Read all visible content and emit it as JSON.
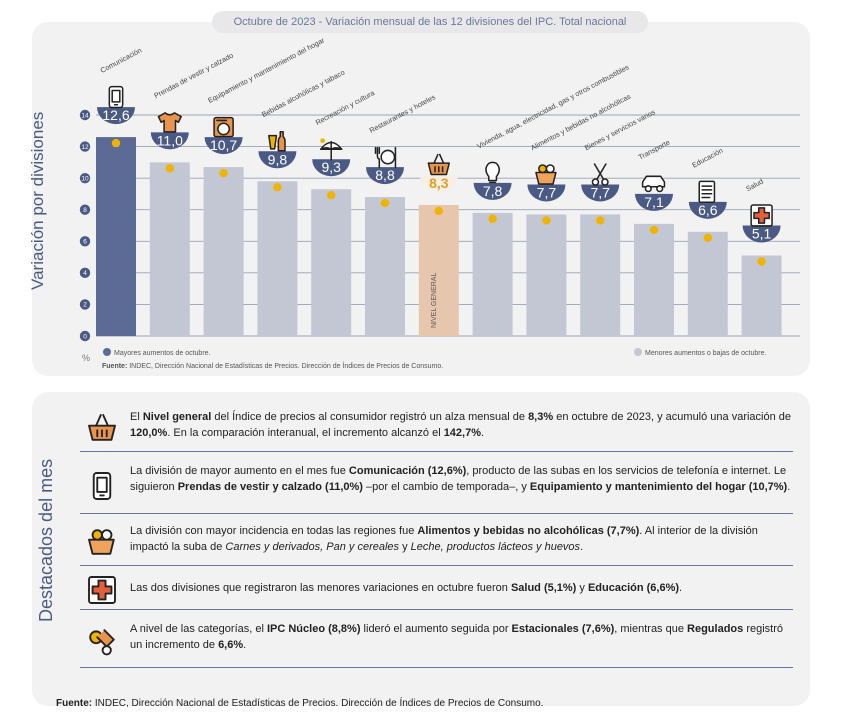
{
  "title": "Octubre de 2023 - Variación mensual de las 12 divisiones del IPC. Total nacional",
  "y_axis_label": "Variación por divisiones",
  "chart_data": {
    "type": "bar",
    "categories": [
      "Comunicación",
      "Prendas de vestir y calzado",
      "Equipamiento y mantenimiento del hogar",
      "Bebidas alcohólicas y tabaco",
      "Recreación y cultura",
      "Restaurantes y hoteles",
      "NIVEL GENERAL",
      "Vivienda, agua, electricidad, gas y otros combustibles",
      "Alimentos y bebidas no alcohólicas",
      "Bienes y servicios varios",
      "Transporte",
      "Educación",
      "Salud"
    ],
    "values": [
      12.6,
      11.0,
      10.7,
      9.8,
      9.3,
      8.8,
      8.3,
      7.8,
      7.7,
      7.7,
      7.1,
      6.6,
      5.1
    ],
    "value_labels": [
      "12,6",
      "11,0",
      "10,7",
      "9,8",
      "9,3",
      "8,8",
      "8,3",
      "7,8",
      "7,7",
      "7,7",
      "7,1",
      "6,6",
      "5,1"
    ],
    "ylim": [
      0,
      14
    ],
    "yticks": [
      0,
      2,
      4,
      6,
      8,
      10,
      12,
      14
    ],
    "unit_label": "%",
    "ylabel": "Variación por divisiones",
    "legend": [
      {
        "label": "Mayores aumentos de octubre.",
        "color": "#5b6b95"
      },
      {
        "label": "Menores aumentos o bajas de octubre.",
        "color": "#c3c7d3"
      }
    ],
    "colors": {
      "high": "#5b6b95",
      "low": "#c3c7d3",
      "general": "#e6c7ae",
      "dot": "#f0b400",
      "badge": "#4a5a84"
    },
    "bar_colors": [
      "high",
      "low",
      "low",
      "low",
      "low",
      "low",
      "general",
      "low",
      "low",
      "low",
      "low",
      "low",
      "low"
    ],
    "icons": [
      "phone-icon",
      "tshirt-icon",
      "appliance-icon",
      "drinks-icon",
      "beach-umbrella-icon",
      "cutlery-icon",
      "shopping-basket-icon",
      "utilities-icon",
      "groceries-icon",
      "scissors-icon",
      "car-icon",
      "books-icon",
      "medical-cross-icon"
    ],
    "source": "INDEC, Dirección Nacional de Estadísticas de Precios. Dirección de Índices de Precios de Consumo."
  },
  "chart_source_label": "Fuente:",
  "highlights_title": "Destacados del mes",
  "highlights": [
    {
      "icon": "shopping-basket-icon",
      "segments": [
        {
          "t": "El "
        },
        {
          "t": "Nivel general",
          "b": true
        },
        {
          "t": " del Índice de precios al consumidor registró un alza mensual de "
        },
        {
          "t": "8,3%",
          "b": true
        },
        {
          "t": " en octubre de 2023, y acumuló una variación de "
        },
        {
          "t": "120,0%",
          "b": true
        },
        {
          "t": ". En la comparación interanual, el incremento alcanzó el "
        },
        {
          "t": "142,7%",
          "b": true
        },
        {
          "t": "."
        }
      ]
    },
    {
      "icon": "phone-icon",
      "segments": [
        {
          "t": "La división de mayor aumento en el mes fue "
        },
        {
          "t": "Comunicación (12,6%)",
          "b": true
        },
        {
          "t": ", producto de las subas en los servicios de telefonía e internet. Le siguieron "
        },
        {
          "t": "Prendas de vestir y calzado (11,0%)",
          "b": true
        },
        {
          "t": " –por el cambio de temporada–, y "
        },
        {
          "t": "Equipamiento y mantenimiento del hogar (10,7%)",
          "b": true
        },
        {
          "t": "."
        }
      ]
    },
    {
      "icon": "groceries-icon",
      "segments": [
        {
          "t": "La división con mayor incidencia en todas las regiones fue "
        },
        {
          "t": "Alimentos y bebidas no alcohólicas (7,7%)",
          "b": true
        },
        {
          "t": ". Al interior de la división impactó la suba de "
        },
        {
          "t": "Carnes y derivados, Pan y cereales",
          "i": true
        },
        {
          "t": " y "
        },
        {
          "t": "Leche, productos lácteos y huevos",
          "i": true
        },
        {
          "t": "."
        }
      ]
    },
    {
      "icon": "medical-cross-icon",
      "segments": [
        {
          "t": "Las dos divisiones que registraron las menores variaciones en octubre fueron "
        },
        {
          "t": "Salud (5,1%)",
          "b": true
        },
        {
          "t": " y "
        },
        {
          "t": "Educación (6,6%)",
          "b": true
        },
        {
          "t": "."
        }
      ]
    },
    {
      "icon": "categories-icon",
      "segments": [
        {
          "t": "A nivel de las categorías, el "
        },
        {
          "t": "IPC Núcleo (8,8%)",
          "b": true
        },
        {
          "t": " lideró el aumento seguida por "
        },
        {
          "t": "Estacionales (7,6%)",
          "b": true
        },
        {
          "t": ", mientras que "
        },
        {
          "t": "Regulados",
          "b": true
        },
        {
          "t": " registró un incremento de "
        },
        {
          "t": "6,6%",
          "b": true
        },
        {
          "t": "."
        }
      ]
    }
  ],
  "footer_label": "Fuente:",
  "footer_source": "INDEC, Dirección Nacional de Estadísticas de Precios. Dirección de Índices de Precios de Consumo."
}
